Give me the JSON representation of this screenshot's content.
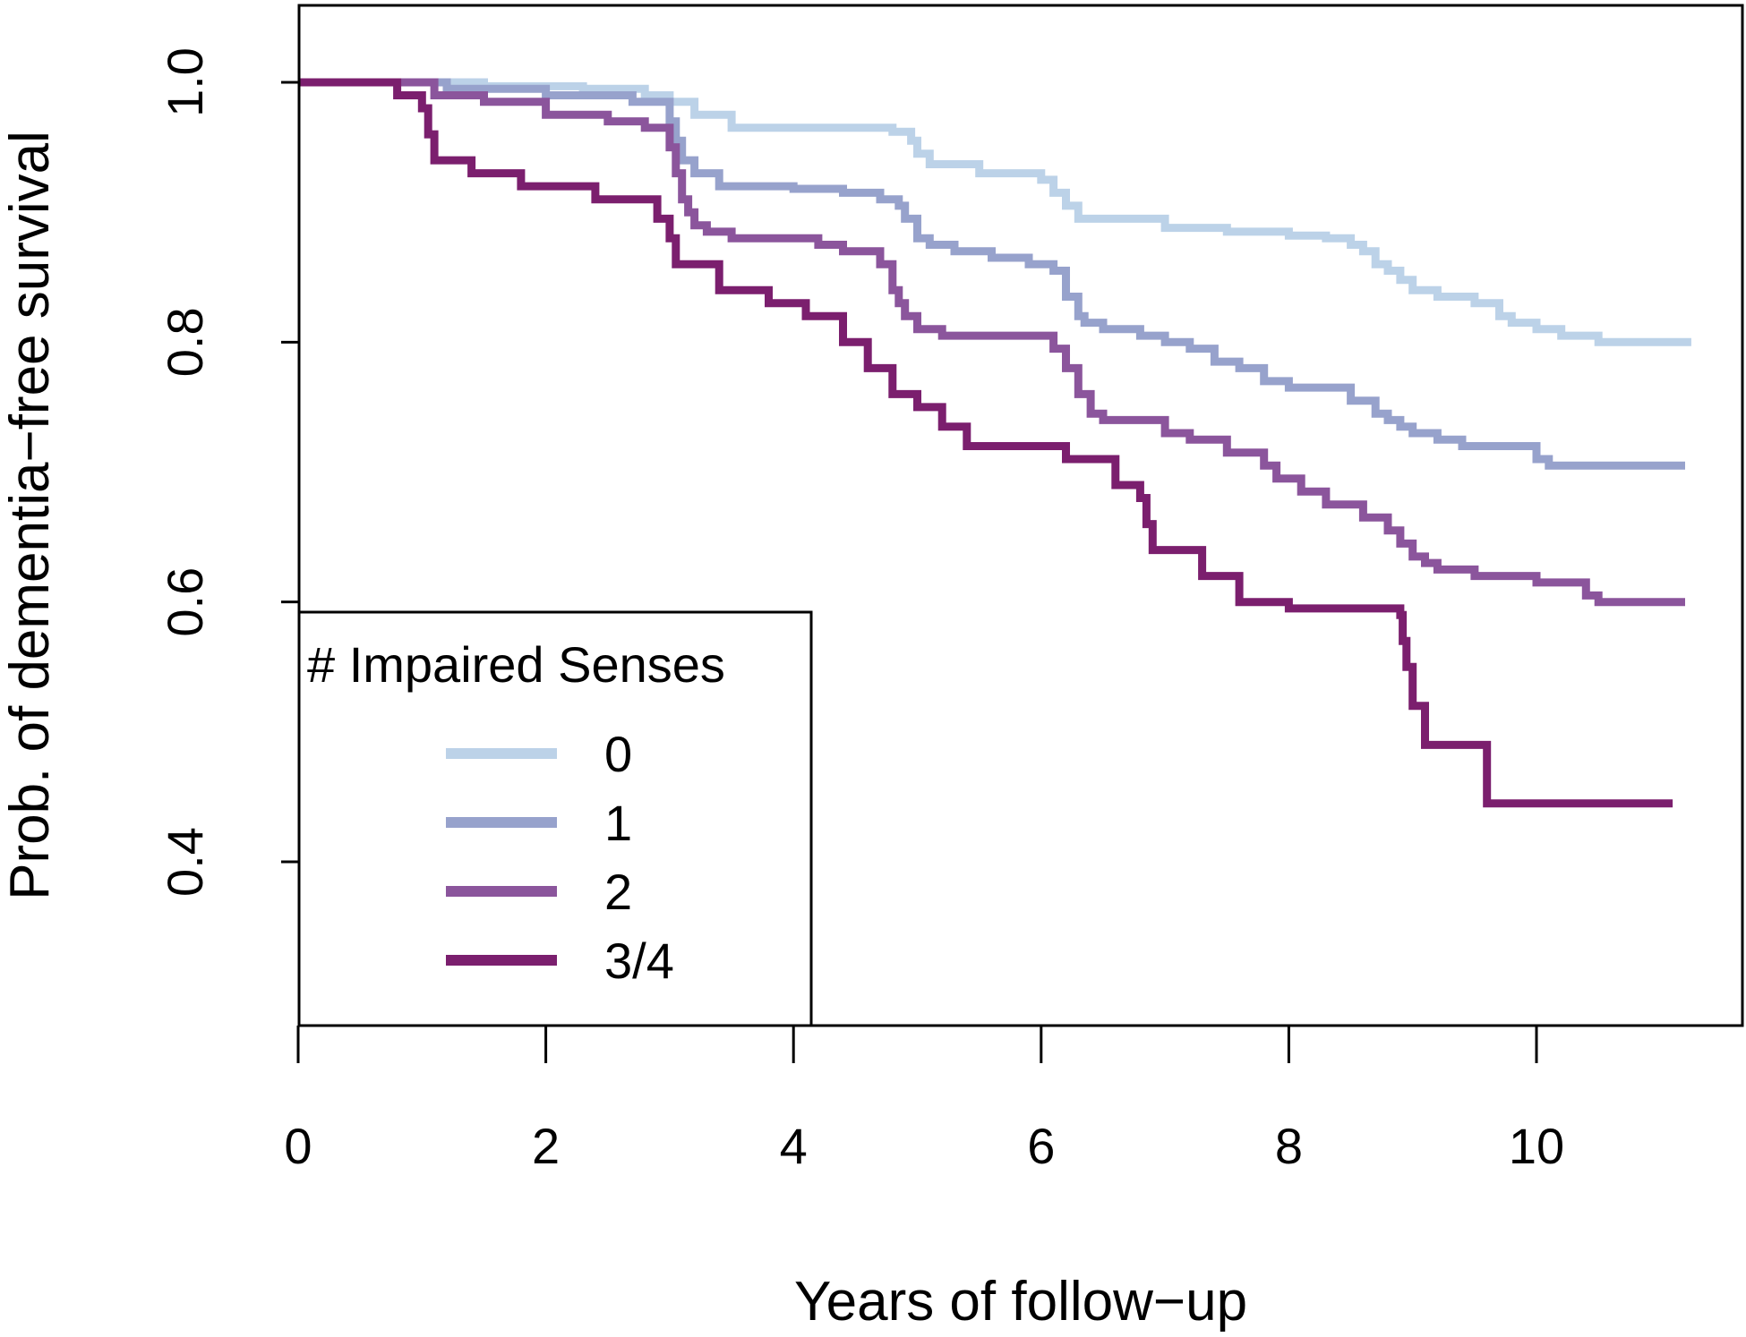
{
  "chart_data": {
    "type": "line",
    "title": "",
    "xlabel": "Years of follow−up",
    "ylabel": "Prob. of dementia−free survival",
    "xlim": [
      0,
      11.7
    ],
    "ylim": [
      0.28,
      1.06
    ],
    "x_ticks": [
      0,
      2,
      4,
      6,
      8,
      10
    ],
    "x_tick_labels": [
      "0",
      "2",
      "4",
      "6",
      "8",
      "10"
    ],
    "y_ticks": [
      0.4,
      0.6,
      0.8,
      1.0
    ],
    "y_tick_labels": [
      "0.4",
      "0.6",
      "0.8",
      "1.0"
    ],
    "grid": false,
    "legend": {
      "title": "# Impaired Senses",
      "position": "bottom-left"
    },
    "series": [
      {
        "name": "0",
        "color": "#bcd2e8",
        "x": [
          0,
          0.8,
          1.5,
          2.3,
          2.8,
          3.0,
          3.2,
          3.5,
          4.8,
          4.95,
          5.0,
          5.1,
          5.5,
          6.0,
          6.1,
          6.2,
          6.3,
          7.0,
          7.5,
          8.0,
          8.3,
          8.5,
          8.6,
          8.7,
          8.8,
          8.9,
          9.0,
          9.2,
          9.5,
          9.7,
          9.8,
          10.0,
          10.2,
          10.5,
          11.25
        ],
        "y": [
          1.0,
          1.0,
          0.997,
          0.995,
          0.99,
          0.985,
          0.975,
          0.965,
          0.962,
          0.955,
          0.945,
          0.937,
          0.93,
          0.925,
          0.915,
          0.905,
          0.895,
          0.888,
          0.885,
          0.882,
          0.88,
          0.875,
          0.87,
          0.86,
          0.855,
          0.848,
          0.84,
          0.835,
          0.83,
          0.82,
          0.815,
          0.81,
          0.805,
          0.8,
          0.8
        ]
      },
      {
        "name": "1",
        "color": "#97a2cc",
        "x": [
          0,
          0.5,
          1.2,
          2.0,
          2.7,
          3.0,
          3.05,
          3.1,
          3.2,
          3.4,
          4.0,
          4.4,
          4.7,
          4.85,
          4.9,
          5.0,
          5.1,
          5.3,
          5.6,
          5.9,
          6.1,
          6.2,
          6.3,
          6.35,
          6.5,
          6.8,
          7.0,
          7.2,
          7.4,
          7.6,
          7.8,
          8.0,
          8.5,
          8.7,
          8.8,
          8.9,
          9.0,
          9.2,
          9.4,
          9.6,
          10.0,
          10.1,
          11.2
        ],
        "y": [
          1.0,
          1.0,
          0.995,
          0.99,
          0.985,
          0.97,
          0.955,
          0.94,
          0.93,
          0.92,
          0.918,
          0.915,
          0.91,
          0.905,
          0.895,
          0.88,
          0.875,
          0.87,
          0.865,
          0.86,
          0.855,
          0.835,
          0.82,
          0.815,
          0.81,
          0.805,
          0.8,
          0.795,
          0.785,
          0.78,
          0.77,
          0.765,
          0.755,
          0.745,
          0.74,
          0.735,
          0.73,
          0.725,
          0.72,
          0.72,
          0.71,
          0.705,
          0.705
        ]
      },
      {
        "name": "2",
        "color": "#8b559c",
        "x": [
          0,
          0.6,
          1.1,
          1.5,
          2.0,
          2.5,
          2.8,
          3.0,
          3.05,
          3.1,
          3.15,
          3.2,
          3.3,
          3.5,
          4.2,
          4.4,
          4.7,
          4.8,
          4.85,
          4.9,
          5.0,
          5.2,
          5.4,
          6.1,
          6.2,
          6.3,
          6.4,
          6.5,
          7.0,
          7.2,
          7.5,
          7.8,
          7.9,
          8.1,
          8.3,
          8.6,
          8.8,
          8.9,
          9.0,
          9.1,
          9.2,
          9.5,
          10.0,
          10.4,
          10.5,
          11.2
        ],
        "y": [
          1.0,
          1.0,
          0.99,
          0.985,
          0.975,
          0.97,
          0.965,
          0.95,
          0.93,
          0.91,
          0.9,
          0.89,
          0.885,
          0.88,
          0.875,
          0.87,
          0.86,
          0.84,
          0.83,
          0.82,
          0.81,
          0.805,
          0.805,
          0.795,
          0.78,
          0.76,
          0.745,
          0.74,
          0.73,
          0.725,
          0.715,
          0.705,
          0.695,
          0.685,
          0.675,
          0.665,
          0.655,
          0.645,
          0.635,
          0.63,
          0.625,
          0.62,
          0.615,
          0.605,
          0.6,
          0.6
        ]
      },
      {
        "name": "3/4",
        "color": "#7b1f6e",
        "x": [
          0,
          0.6,
          0.8,
          1.0,
          1.05,
          1.1,
          1.4,
          1.8,
          2.4,
          2.9,
          3.0,
          3.05,
          3.1,
          3.4,
          3.8,
          4.1,
          4.4,
          4.6,
          4.8,
          5.0,
          5.2,
          5.4,
          6.2,
          6.6,
          6.8,
          6.85,
          6.9,
          7.3,
          7.6,
          8.0,
          8.1,
          8.9,
          8.92,
          8.95,
          9.0,
          9.1,
          9.6,
          11.1
        ],
        "y": [
          1.0,
          1.0,
          0.99,
          0.98,
          0.96,
          0.94,
          0.93,
          0.92,
          0.91,
          0.895,
          0.88,
          0.86,
          0.86,
          0.84,
          0.83,
          0.82,
          0.8,
          0.78,
          0.76,
          0.75,
          0.735,
          0.72,
          0.71,
          0.69,
          0.68,
          0.66,
          0.64,
          0.62,
          0.6,
          0.595,
          0.595,
          0.59,
          0.57,
          0.55,
          0.52,
          0.49,
          0.445,
          0.445
        ]
      }
    ]
  }
}
